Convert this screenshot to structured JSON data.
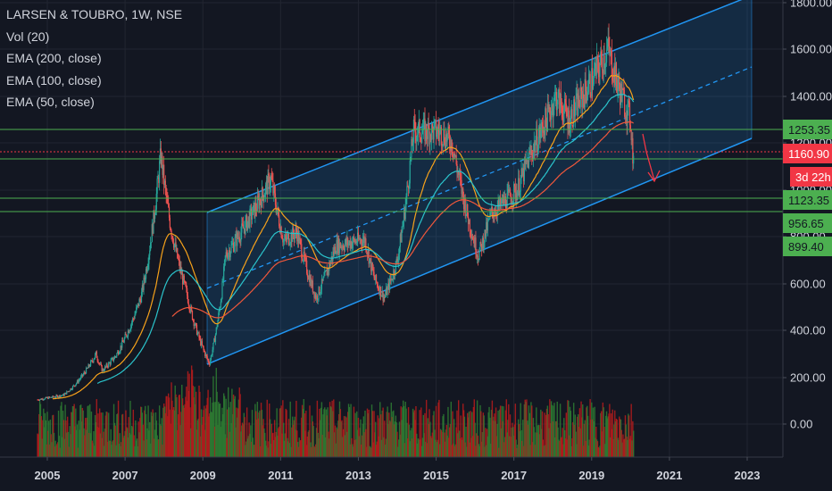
{
  "legend": {
    "title": "LARSEN & TOUBRO, 1W, NSE",
    "vol": "Vol (20)",
    "ema200": "EMA (200, close)",
    "ema100": "EMA (100, close)",
    "ema50": "EMA (50, close)"
  },
  "colors": {
    "background": "#131722",
    "grid": "#222631",
    "text": "#d1d4dc",
    "channel": "#2196f3",
    "horizontal_levels": "#4caf50",
    "last_price": "#f23645",
    "candle_up": "#26a69a",
    "candle_down": "#ef5350",
    "ema50": "#f7a21b",
    "ema100": "#2bc4cc",
    "ema200": "#f0573b",
    "volume_up": "#2e7d32",
    "volume_down": "#b71c1c"
  },
  "chart_data": {
    "type": "candlestick",
    "symbol": "LARSEN & TOUBRO",
    "interval": "1W",
    "exchange": "NSE",
    "x_ticks": [
      "2005",
      "2007",
      "2009",
      "2011",
      "2013",
      "2015",
      "2017",
      "2019",
      "2021",
      "2023"
    ],
    "y_ticks": [
      "1800.00",
      "1600.00",
      "1400.00",
      "1200.00",
      "1000.00",
      "800.00",
      "600.00",
      "400.00",
      "200.00",
      "0.00"
    ],
    "y_scale": "log",
    "price_path": [
      [
        "2004-10",
        105
      ],
      [
        "2005-06",
        125
      ],
      [
        "2006-04",
        300
      ],
      [
        "2006-06",
        230
      ],
      [
        "2006-10",
        290
      ],
      [
        "2007-06",
        550
      ],
      [
        "2007-12",
        1150
      ],
      [
        "2008-03",
        850
      ],
      [
        "2008-08",
        560
      ],
      [
        "2009-03",
        260
      ],
      [
        "2009-08",
        720
      ],
      [
        "2010-10",
        1050
      ],
      [
        "2011-02",
        780
      ],
      [
        "2011-06",
        820
      ],
      [
        "2011-12",
        540
      ],
      [
        "2012-06",
        760
      ],
      [
        "2013-03",
        790
      ],
      [
        "2013-06",
        620
      ],
      [
        "2013-09",
        540
      ],
      [
        "2014-01",
        700
      ],
      [
        "2014-06",
        1250
      ],
      [
        "2015-02",
        1250
      ],
      [
        "2015-06",
        1200
      ],
      [
        "2016-02",
        720
      ],
      [
        "2016-06",
        900
      ],
      [
        "2017-02",
        1000
      ],
      [
        "2017-06",
        1150
      ],
      [
        "2018-02",
        1400
      ],
      [
        "2018-06",
        1300
      ],
      [
        "2019-06",
        1600
      ],
      [
        "2019-09",
        1450
      ],
      [
        "2020-01",
        1300
      ],
      [
        "2020-02",
        1100
      ]
    ],
    "indicators": [
      "EMA (200, close)",
      "EMA (100, close)",
      "EMA (50, close)",
      "Vol (20)"
    ],
    "horizontal_levels": [
      1253.35,
      1160.9,
      1123.35,
      956.65,
      899.4
    ],
    "price_labels": [
      "1253.35",
      "1160.90",
      "3d 22h",
      "1123.35",
      "956.65",
      "899.40"
    ],
    "last_price": 1160.9,
    "bar_countdown": "3d 22h",
    "channel": {
      "upper": [
        [
          "2009-03",
          1000
        ],
        [
          "2023-01",
          1850
        ]
      ],
      "lower": [
        [
          "2009-03",
          250
        ],
        [
          "2023-01",
          1220
        ]
      ],
      "projected_direction": "down"
    }
  }
}
